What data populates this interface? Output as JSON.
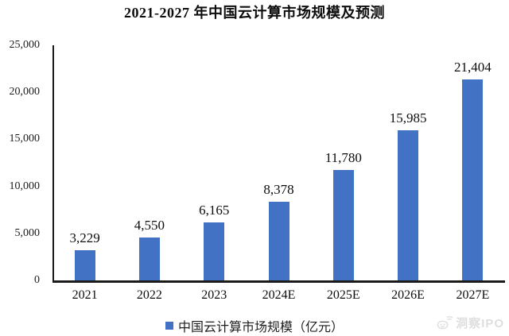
{
  "chart_data": {
    "type": "bar",
    "title": "2021-2027 年中国云计算市场规模及预测",
    "categories": [
      "2021",
      "2022",
      "2023",
      "2024E",
      "2025E",
      "2026E",
      "2027E"
    ],
    "values": [
      3229,
      4550,
      6165,
      8378,
      11780,
      15985,
      21404
    ],
    "value_labels": [
      "3,229",
      "4,550",
      "6,165",
      "8,378",
      "11,780",
      "15,985",
      "21,404"
    ],
    "series_name": "中国云计算市场规模（亿元）",
    "xlabel": "",
    "ylabel": "",
    "ylim": [
      0,
      25000
    ],
    "yticks": [
      0,
      5000,
      10000,
      15000,
      20000,
      25000
    ],
    "ytick_labels": [
      "0",
      "5,000",
      "10,000",
      "15,000",
      "20,000",
      "25,000"
    ],
    "grid": false,
    "legend_position": "bottom",
    "bar_color": "#4272C3",
    "axis_color": "#1a1a1a"
  },
  "legend": {
    "label": "中国云计算市场规模（亿元）"
  },
  "watermark": {
    "text": "洞察IPO",
    "icon": "panda-signal-logo",
    "color": "#d9d9d9"
  }
}
